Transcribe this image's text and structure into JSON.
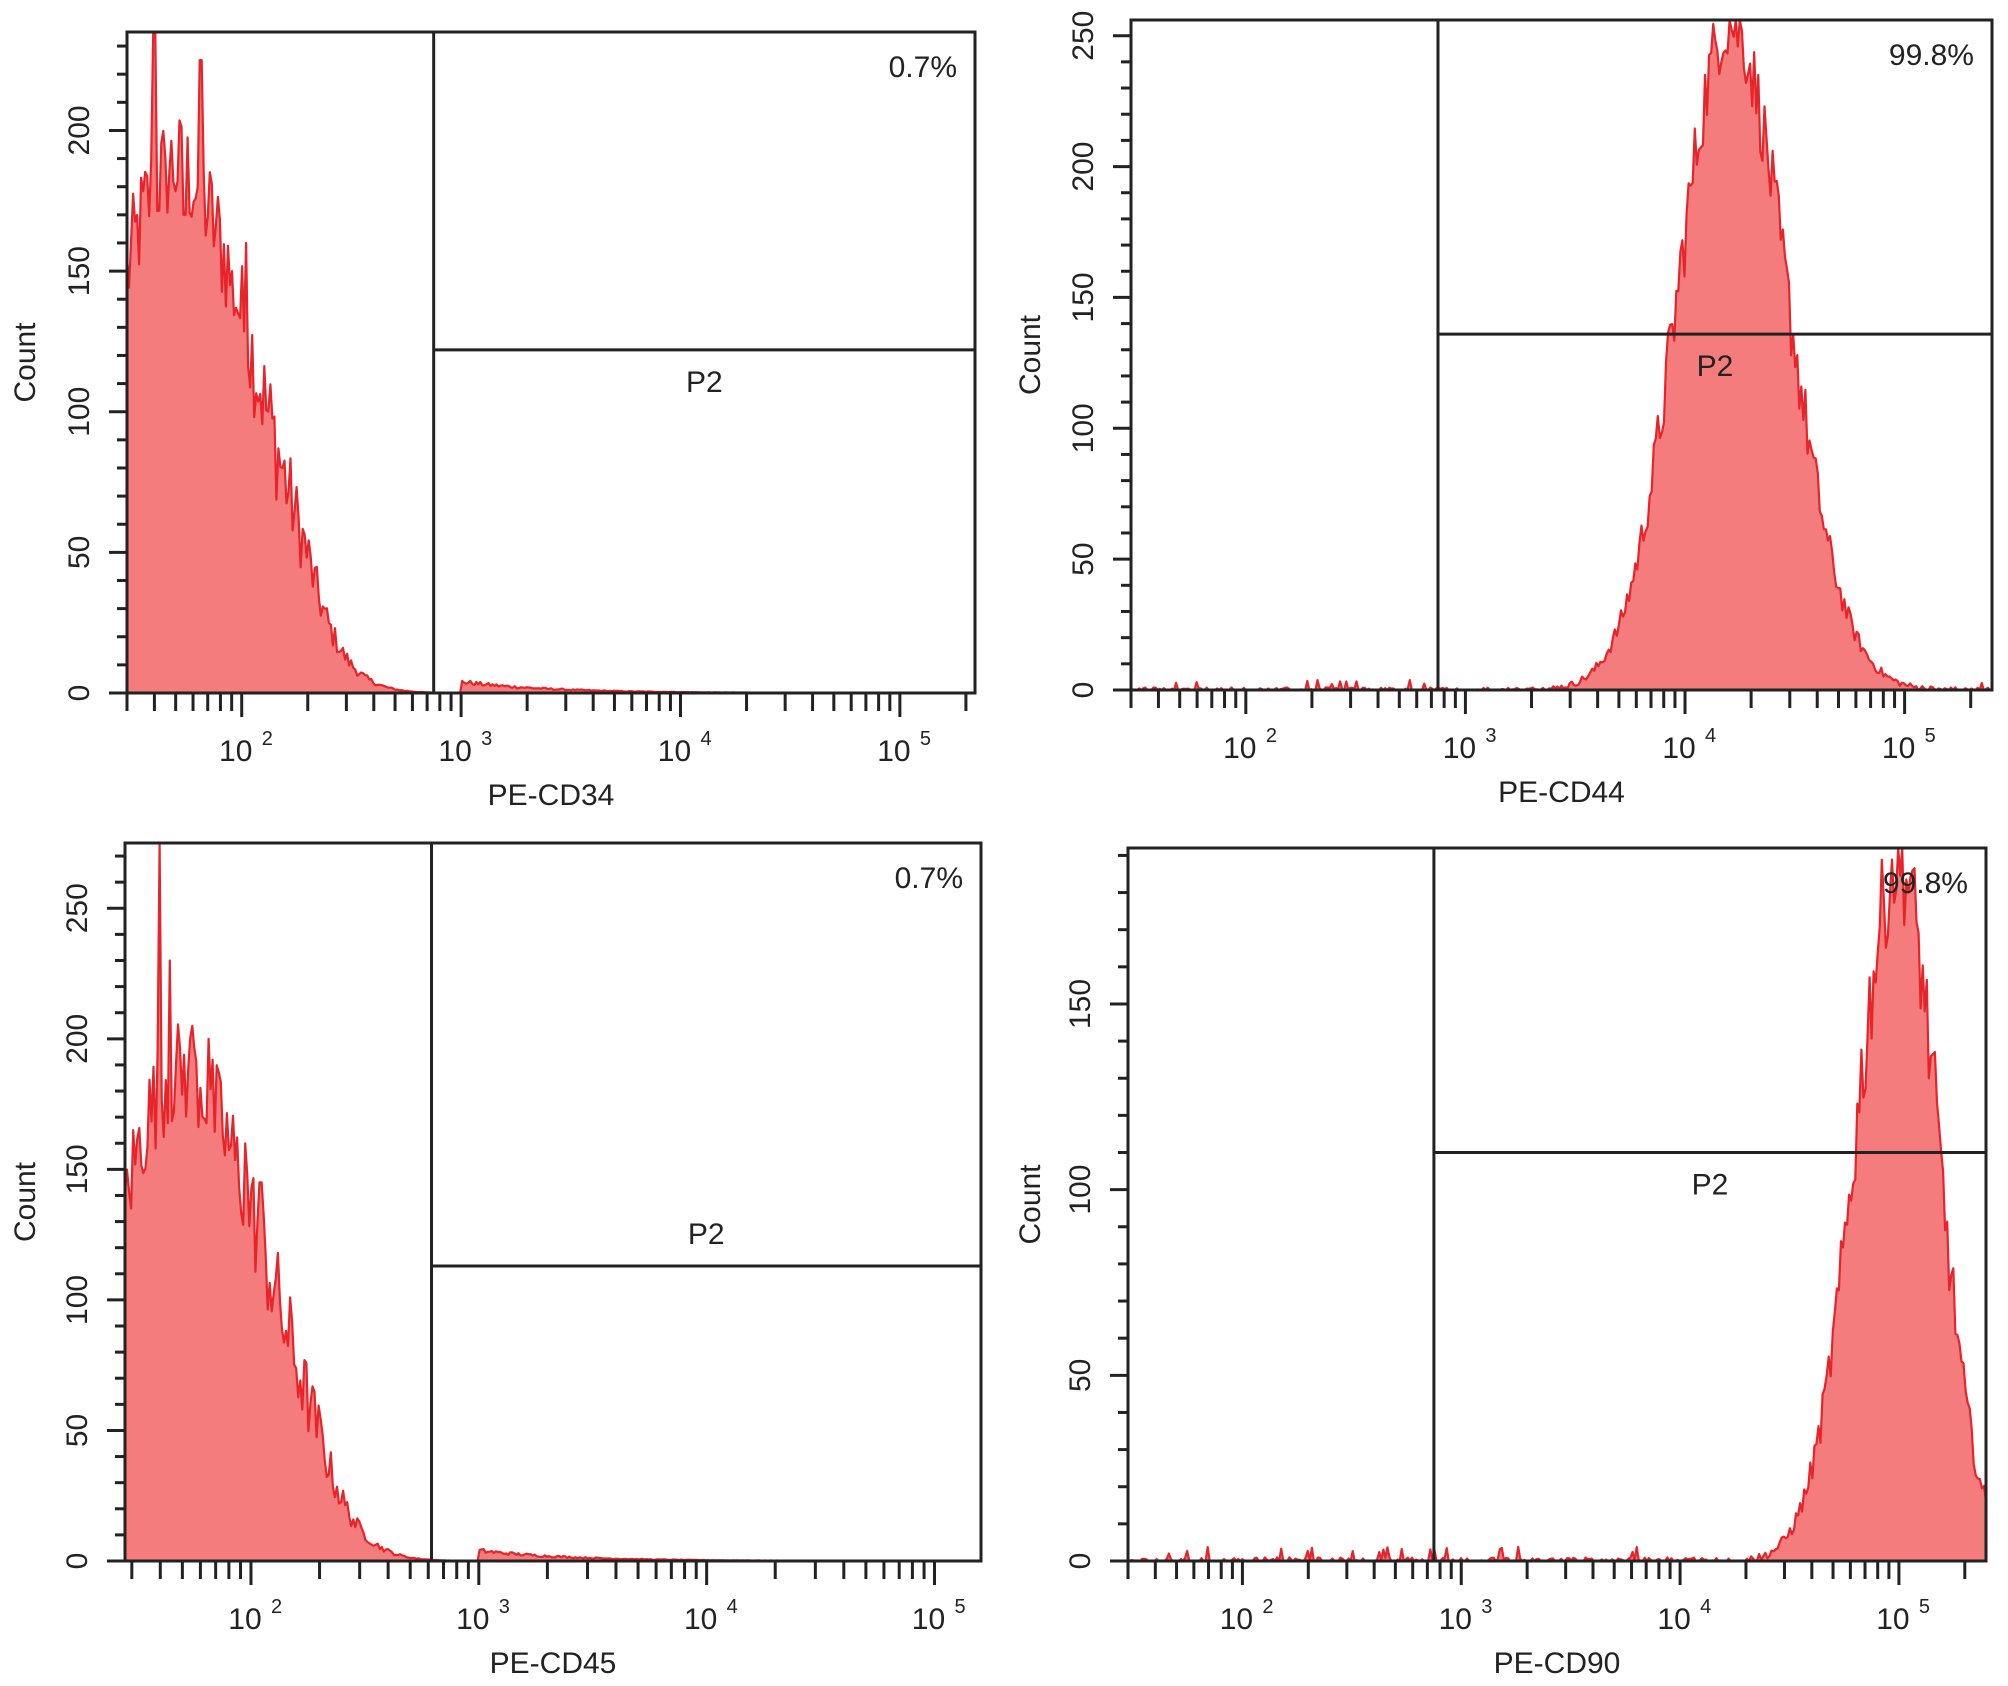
{
  "chart_data": [
    {
      "type": "area",
      "marker": "PE-CD34",
      "xlabel": "PE-CD34",
      "ylabel": "Count",
      "x_scale": "log",
      "xlim": [
        30,
        220000
      ],
      "ylim": [
        0,
        235
      ],
      "y_ticks": [
        0,
        50,
        100,
        150,
        200
      ],
      "x_ticks": [
        100,
        1000,
        10000,
        100000
      ],
      "x_tick_labels": [
        "10",
        "10",
        "10",
        "10"
      ],
      "x_tick_exponents": [
        "2",
        "3",
        "4",
        "5"
      ],
      "color": "#f47c7c",
      "edge_color": "#e8242a",
      "gate": {
        "name": "P2",
        "x_from": 750,
        "x_to": 220000,
        "y_level": 122,
        "percent": "0.7%"
      },
      "profile": {
        "kind": "negative",
        "spikes": [
          [
            40,
            235
          ],
          [
            45,
            190
          ],
          [
            55,
            170
          ],
          [
            65,
            225
          ],
          [
            90,
            150
          ],
          [
            105,
            160
          ]
        ]
      }
    },
    {
      "type": "area",
      "marker": "PE-CD44",
      "xlabel": "PE-CD44",
      "ylabel": "Count",
      "x_scale": "log",
      "xlim": [
        30,
        250000
      ],
      "ylim": [
        0,
        256
      ],
      "y_ticks": [
        0,
        50,
        100,
        150,
        200,
        250
      ],
      "x_ticks": [
        100,
        1000,
        10000,
        100000
      ],
      "x_tick_labels": [
        "10",
        "10",
        "10",
        "10"
      ],
      "x_tick_exponents": [
        "2",
        "3",
        "4",
        "5"
      ],
      "color": "#f47c7c",
      "edge_color": "#e8242a",
      "gate": {
        "name": "P2",
        "x_from": 750,
        "x_to": 250000,
        "y_level": 136,
        "percent": "99.8%"
      },
      "profile": {
        "kind": "peak",
        "center": 16000,
        "width": 0.33,
        "peak": 255,
        "right_skew": 1.1
      }
    },
    {
      "type": "area",
      "marker": "PE-CD45",
      "xlabel": "PE-CD45",
      "ylabel": "Count",
      "x_scale": "log",
      "xlim": [
        28,
        160000
      ],
      "ylim": [
        0,
        275
      ],
      "y_ticks": [
        0,
        50,
        100,
        150,
        200,
        250
      ],
      "x_ticks": [
        100,
        1000,
        10000,
        100000
      ],
      "x_tick_labels": [
        "10",
        "10",
        "10",
        "10"
      ],
      "x_tick_exponents": [
        "2",
        "3",
        "4",
        "5"
      ],
      "color": "#f47c7c",
      "edge_color": "#e8242a",
      "gate": {
        "name": "P2",
        "x_from": 620,
        "x_to": 160000,
        "y_level": 113,
        "percent": "0.7%"
      },
      "profile": {
        "kind": "negative",
        "spikes": [
          [
            40,
            275
          ],
          [
            44,
            230
          ],
          [
            55,
            205
          ],
          [
            65,
            200
          ],
          [
            95,
            160
          ],
          [
            110,
            145
          ]
        ]
      }
    },
    {
      "type": "area",
      "marker": "PE-CD90",
      "xlabel": "PE-CD90",
      "ylabel": "Count",
      "x_scale": "log",
      "xlim": [
        30,
        250000
      ],
      "ylim": [
        0,
        192
      ],
      "y_ticks": [
        0,
        50,
        100,
        150
      ],
      "x_ticks": [
        100,
        1000,
        10000,
        100000
      ],
      "x_tick_labels": [
        "10",
        "10",
        "10",
        "10"
      ],
      "x_tick_exponents": [
        "2",
        "3",
        "4",
        "5"
      ],
      "color": "#f47c7c",
      "edge_color": "#e8242a",
      "gate": {
        "name": "P2",
        "x_from": 750,
        "x_to": 250000,
        "y_level": 110,
        "percent": "99.8%"
      },
      "profile": {
        "kind": "peak",
        "center": 100000,
        "width": 0.28,
        "peak": 188,
        "right_skew": 0.9
      }
    }
  ]
}
